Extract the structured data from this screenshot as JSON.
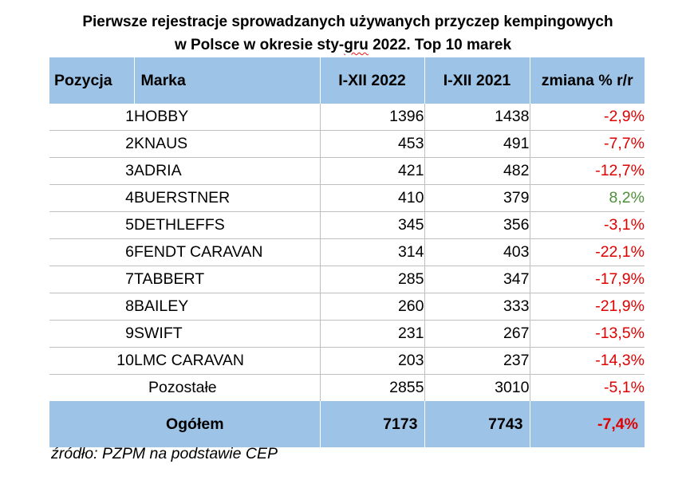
{
  "title": {
    "line1": "Pierwsze rejestracje sprowadzanych używanych przyczep kempingowych",
    "line2_before": "w Polsce w okresie sty-",
    "line2_squiggle": "gru",
    "line2_after": " 2022. Top 10 marek"
  },
  "table": {
    "headers": [
      "Pozycja",
      "Marka",
      "I-XII 2022",
      "I-XII 2021",
      "zmiana % r/r"
    ],
    "rows": [
      {
        "pos": "1",
        "brand": "HOBBY",
        "y2022": "1396",
        "y2021": "1438",
        "change": "-2,9%"
      },
      {
        "pos": "2",
        "brand": "KNAUS",
        "y2022": "453",
        "y2021": "491",
        "change": "-7,7%"
      },
      {
        "pos": "3",
        "brand": "ADRIA",
        "y2022": "421",
        "y2021": "482",
        "change": "-12,7%"
      },
      {
        "pos": "4",
        "brand": "BUERSTNER",
        "y2022": "410",
        "y2021": "379",
        "change": "8,2%"
      },
      {
        "pos": "5",
        "brand": "DETHLEFFS",
        "y2022": "345",
        "y2021": "356",
        "change": "-3,1%"
      },
      {
        "pos": "6",
        "brand": "FENDT CARAVAN",
        "y2022": "314",
        "y2021": "403",
        "change": "-22,1%"
      },
      {
        "pos": "7",
        "brand": "TABBERT",
        "y2022": "285",
        "y2021": "347",
        "change": "-17,9%"
      },
      {
        "pos": "8",
        "brand": "BAILEY",
        "y2022": "260",
        "y2021": "333",
        "change": "-21,9%"
      },
      {
        "pos": "9",
        "brand": "SWIFT",
        "y2022": "231",
        "y2021": "267",
        "change": "-13,5%"
      },
      {
        "pos": "10",
        "brand": "LMC CARAVAN",
        "y2022": "203",
        "y2021": "237",
        "change": "-14,3%"
      }
    ],
    "others": {
      "label": "Pozostałe",
      "y2022": "2855",
      "y2021": "3010",
      "change": "-5,1%"
    },
    "total": {
      "label": "Ogółem",
      "y2022": "7173",
      "y2021": "7743",
      "change": "-7,4%"
    }
  },
  "source": "źródło: PZPM na podstawie CEP",
  "colors": {
    "header_bg": "#9dc3e6",
    "negative": "#e00000",
    "positive": "#4e8f3a"
  }
}
